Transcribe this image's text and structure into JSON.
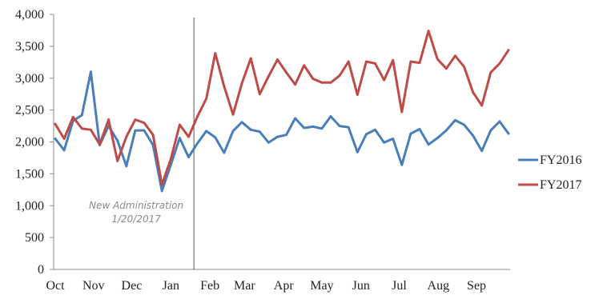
{
  "chart_data": {
    "type": "line",
    "title": "",
    "xlabel": "",
    "ylabel": "",
    "ylim": [
      0,
      4000
    ],
    "yticks": [
      "0",
      "500",
      "1,000",
      "1,500",
      "2,000",
      "2,500",
      "3,000",
      "3,500",
      "4,000"
    ],
    "ytick_values": [
      0,
      500,
      1000,
      1500,
      2000,
      2500,
      3000,
      3500,
      4000
    ],
    "month_labels": [
      "Oct",
      "Nov",
      "Dec",
      "Jan",
      "Feb",
      "Mar",
      "Apr",
      "May",
      "Jun",
      "Jul",
      "Aug",
      "Sep"
    ],
    "month_week_index": [
      0,
      4.3,
      8.6,
      13.0,
      17.4,
      21.3,
      25.7,
      30.0,
      34.4,
      38.7,
      43.1,
      47.4
    ],
    "grid": false,
    "legend_position": "right",
    "annotation": {
      "line1": "New Administration",
      "line2": "1/20/2017",
      "week_index": 15.6
    },
    "series": [
      {
        "name": "FY2016",
        "color": "#4a7ebb",
        "values": [
          2050,
          1870,
          2330,
          2420,
          3100,
          1950,
          2250,
          2020,
          1620,
          2180,
          2180,
          1950,
          1230,
          1640,
          2060,
          1760,
          1980,
          2170,
          2070,
          1830,
          2170,
          2310,
          2190,
          2160,
          1990,
          2080,
          2110,
          2370,
          2220,
          2240,
          2210,
          2400,
          2250,
          2230,
          1840,
          2120,
          2190,
          1990,
          2050,
          1640,
          2130,
          2200,
          1960,
          2060,
          2180,
          2340,
          2270,
          2100,
          1860,
          2180,
          2320,
          2130
        ]
      },
      {
        "name": "FY2017",
        "color": "#be4b48",
        "values": [
          2280,
          2050,
          2390,
          2210,
          2190,
          1960,
          2350,
          1700,
          2080,
          2350,
          2300,
          2110,
          1330,
          1730,
          2270,
          2080,
          2400,
          2680,
          3390,
          2870,
          2430,
          2920,
          3310,
          2750,
          3030,
          3290,
          3090,
          2900,
          3200,
          2990,
          2930,
          2930,
          3040,
          3260,
          2740,
          3260,
          3230,
          2970,
          3280,
          2470,
          3260,
          3240,
          3740,
          3300,
          3150,
          3350,
          3180,
          2780,
          2570,
          3090,
          3230,
          3440
        ]
      }
    ]
  }
}
